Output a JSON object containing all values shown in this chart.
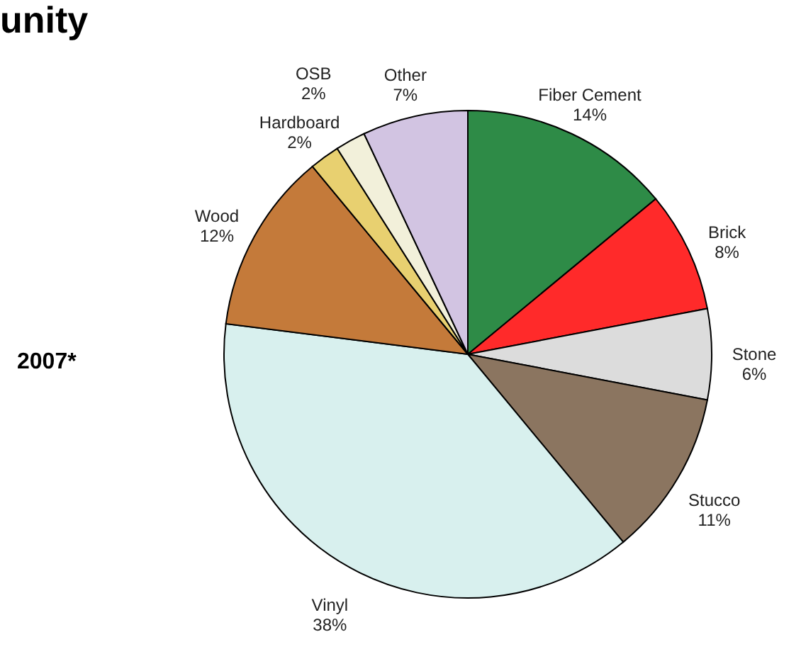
{
  "chart_data": {
    "type": "pie",
    "title": "unity",
    "categories": [
      "Fiber Cement",
      "Brick",
      "Stone",
      "Stucco",
      "Vinyl",
      "Wood",
      "Hardboard",
      "OSB",
      "Other"
    ],
    "values": [
      14,
      8,
      6,
      11,
      38,
      12,
      2,
      2,
      7
    ],
    "colors": [
      "#2e8b47",
      "#ff2a2a",
      "#dcdcdc",
      "#8b7560",
      "#d8f0ee",
      "#c47a3a",
      "#e8d070",
      "#f2f0da",
      "#d2c4e2"
    ],
    "value_labels": [
      "14%",
      "8%",
      "6%",
      "11%",
      "38%",
      "12%",
      "2%",
      "2%",
      "7%"
    ],
    "annotations": [
      "2007*"
    ]
  }
}
